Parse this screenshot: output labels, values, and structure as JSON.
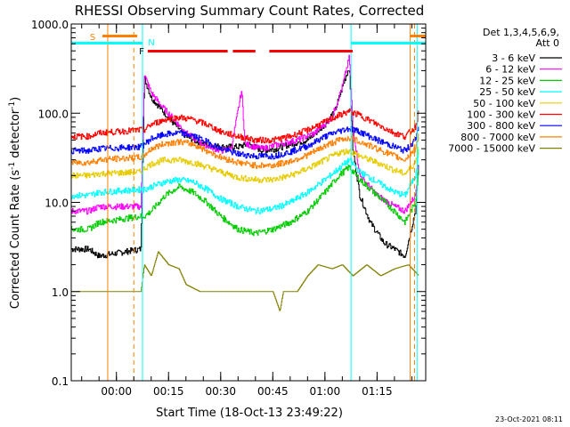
{
  "chart_data": {
    "type": "line",
    "title": "RHESSI Observing Summary Count Rates, Corrected",
    "xlabel": "Start Time (18-Oct-13 23:49:22)",
    "ylabel": "Corrected Count Rate (s",
    "ylabel_sup": "-1",
    "ylabel_tail": " detector",
    "ylabel_tail_sup": "-1",
    "ylabel_close": ")",
    "yscale": "log",
    "ylim": [
      0.1,
      1000
    ],
    "xlim_min": [
      -13,
      89
    ],
    "y_ticks": [
      {
        "v": 0.1,
        "label": "0.1"
      },
      {
        "v": 1,
        "label": "1.0"
      },
      {
        "v": 10,
        "label": "10.0"
      },
      {
        "v": 100,
        "label": "100.0"
      },
      {
        "v": 1000,
        "label": "1000.0"
      }
    ],
    "x_ticks": [
      {
        "v": 0,
        "label": "00:00"
      },
      {
        "v": 15,
        "label": "00:15"
      },
      {
        "v": 30,
        "label": "00:30"
      },
      {
        "v": 45,
        "label": "00:45"
      },
      {
        "v": 60,
        "label": "01:00"
      },
      {
        "v": 75,
        "label": "01:15"
      }
    ],
    "legend": {
      "header": [
        "Det 1,3,4,5,6,9,",
        "Att 0"
      ],
      "placement": "right"
    },
    "series": [
      {
        "name": "3 - 6 keV",
        "color": "#000000",
        "points": [
          [
            -13,
            3
          ],
          [
            -8,
            3
          ],
          [
            -5,
            2.5
          ],
          [
            7,
            3
          ],
          [
            8,
            250
          ],
          [
            10,
            150
          ],
          [
            13,
            110
          ],
          [
            16,
            80
          ],
          [
            20,
            55
          ],
          [
            25,
            45
          ],
          [
            30,
            42
          ],
          [
            35,
            42
          ],
          [
            38,
            45
          ],
          [
            42,
            38
          ],
          [
            46,
            40
          ],
          [
            50,
            45
          ],
          [
            55,
            50
          ],
          [
            60,
            75
          ],
          [
            63,
            110
          ],
          [
            66,
            260
          ],
          [
            67,
            330
          ],
          [
            68,
            40
          ],
          [
            70,
            12
          ],
          [
            73,
            6
          ],
          [
            77,
            3.5
          ],
          [
            80,
            3
          ],
          [
            83,
            2.5
          ],
          [
            86,
            8
          ],
          [
            87,
            30
          ]
        ]
      },
      {
        "name": "6 - 12 keV",
        "color": "#ff00ff",
        "points": [
          [
            -13,
            8
          ],
          [
            -8,
            8
          ],
          [
            -5,
            9
          ],
          [
            7,
            9
          ],
          [
            8,
            270
          ],
          [
            10,
            170
          ],
          [
            13,
            120
          ],
          [
            16,
            90
          ],
          [
            20,
            60
          ],
          [
            25,
            45
          ],
          [
            30,
            38
          ],
          [
            33,
            40
          ],
          [
            36,
            180
          ],
          [
            37,
            45
          ],
          [
            42,
            40
          ],
          [
            47,
            45
          ],
          [
            52,
            50
          ],
          [
            57,
            60
          ],
          [
            62,
            90
          ],
          [
            65,
            200
          ],
          [
            67,
            430
          ],
          [
            68,
            70
          ],
          [
            70,
            20
          ],
          [
            75,
            12
          ],
          [
            80,
            9
          ],
          [
            83,
            8
          ],
          [
            86,
            12
          ],
          [
            87,
            30
          ]
        ]
      },
      {
        "name": "12 - 25 keV",
        "color": "#00cc00",
        "points": [
          [
            -13,
            5
          ],
          [
            -8,
            5
          ],
          [
            -5,
            6
          ],
          [
            7,
            7
          ],
          [
            8,
            7
          ],
          [
            10,
            8
          ],
          [
            14,
            12
          ],
          [
            18,
            15
          ],
          [
            22,
            13
          ],
          [
            26,
            10
          ],
          [
            30,
            7
          ],
          [
            35,
            5
          ],
          [
            40,
            4.5
          ],
          [
            45,
            5
          ],
          [
            50,
            6
          ],
          [
            55,
            8
          ],
          [
            60,
            13
          ],
          [
            64,
            20
          ],
          [
            67,
            25
          ],
          [
            70,
            18
          ],
          [
            75,
            12
          ],
          [
            80,
            8
          ],
          [
            83,
            6
          ],
          [
            86,
            10
          ],
          [
            87,
            25
          ]
        ]
      },
      {
        "name": "25 - 50 keV",
        "color": "#00ffff",
        "points": [
          [
            -13,
            12
          ],
          [
            -8,
            12
          ],
          [
            -5,
            13
          ],
          [
            7,
            14
          ],
          [
            8,
            14
          ],
          [
            10,
            15
          ],
          [
            14,
            17
          ],
          [
            18,
            18
          ],
          [
            22,
            17
          ],
          [
            26,
            14
          ],
          [
            30,
            11
          ],
          [
            35,
            9
          ],
          [
            40,
            8
          ],
          [
            45,
            8.5
          ],
          [
            50,
            10
          ],
          [
            55,
            13
          ],
          [
            60,
            18
          ],
          [
            64,
            24
          ],
          [
            67,
            30
          ],
          [
            70,
            22
          ],
          [
            75,
            17
          ],
          [
            80,
            13
          ],
          [
            83,
            12
          ],
          [
            86,
            20
          ],
          [
            87,
            40
          ]
        ]
      },
      {
        "name": "50 - 100 keV",
        "color": "#e6cc00",
        "points": [
          [
            -13,
            20
          ],
          [
            -8,
            20
          ],
          [
            -5,
            21
          ],
          [
            7,
            22
          ],
          [
            8,
            24
          ],
          [
            10,
            27
          ],
          [
            14,
            30
          ],
          [
            18,
            30
          ],
          [
            22,
            28
          ],
          [
            26,
            25
          ],
          [
            30,
            22
          ],
          [
            35,
            19
          ],
          [
            40,
            18
          ],
          [
            45,
            18
          ],
          [
            50,
            20
          ],
          [
            55,
            24
          ],
          [
            60,
            30
          ],
          [
            64,
            36
          ],
          [
            67,
            38
          ],
          [
            70,
            33
          ],
          [
            75,
            28
          ],
          [
            80,
            23
          ],
          [
            83,
            21
          ],
          [
            86,
            28
          ],
          [
            87,
            45
          ]
        ]
      },
      {
        "name": "100 - 300 keV",
        "color": "#ff0000",
        "points": [
          [
            -13,
            55
          ],
          [
            -8,
            55
          ],
          [
            -5,
            60
          ],
          [
            7,
            65
          ],
          [
            8,
            65
          ],
          [
            10,
            75
          ],
          [
            14,
            85
          ],
          [
            18,
            90
          ],
          [
            22,
            85
          ],
          [
            26,
            75
          ],
          [
            30,
            62
          ],
          [
            35,
            55
          ],
          [
            40,
            50
          ],
          [
            45,
            50
          ],
          [
            50,
            55
          ],
          [
            55,
            65
          ],
          [
            60,
            80
          ],
          [
            64,
            95
          ],
          [
            67,
            105
          ],
          [
            70,
            95
          ],
          [
            75,
            75
          ],
          [
            80,
            60
          ],
          [
            83,
            55
          ],
          [
            86,
            70
          ],
          [
            87,
            105
          ]
        ]
      },
      {
        "name": "300 - 800 keV",
        "color": "#0000ff",
        "points": [
          [
            -13,
            38
          ],
          [
            -8,
            38
          ],
          [
            -5,
            40
          ],
          [
            7,
            42
          ],
          [
            8,
            45
          ],
          [
            10,
            52
          ],
          [
            14,
            58
          ],
          [
            18,
            60
          ],
          [
            22,
            56
          ],
          [
            26,
            48
          ],
          [
            30,
            40
          ],
          [
            35,
            35
          ],
          [
            40,
            33
          ],
          [
            45,
            33
          ],
          [
            50,
            37
          ],
          [
            55,
            43
          ],
          [
            60,
            55
          ],
          [
            64,
            63
          ],
          [
            67,
            68
          ],
          [
            70,
            62
          ],
          [
            75,
            50
          ],
          [
            80,
            42
          ],
          [
            83,
            38
          ],
          [
            86,
            50
          ],
          [
            87,
            75
          ]
        ]
      },
      {
        "name": "800 - 7000 keV",
        "color": "#ff8000",
        "points": [
          [
            -13,
            28
          ],
          [
            -8,
            28
          ],
          [
            -5,
            30
          ],
          [
            7,
            32
          ],
          [
            8,
            34
          ],
          [
            10,
            40
          ],
          [
            14,
            46
          ],
          [
            18,
            48
          ],
          [
            22,
            45
          ],
          [
            26,
            38
          ],
          [
            30,
            32
          ],
          [
            35,
            28
          ],
          [
            40,
            26
          ],
          [
            45,
            26
          ],
          [
            50,
            29
          ],
          [
            55,
            34
          ],
          [
            60,
            43
          ],
          [
            64,
            50
          ],
          [
            67,
            53
          ],
          [
            70,
            48
          ],
          [
            75,
            40
          ],
          [
            80,
            33
          ],
          [
            83,
            30
          ],
          [
            86,
            40
          ],
          [
            87,
            60
          ]
        ]
      },
      {
        "name": "7000 - 15000 keV",
        "color": "#808000",
        "points": [
          [
            -13,
            1
          ],
          [
            -10,
            1
          ],
          [
            7,
            1
          ],
          [
            8,
            2
          ],
          [
            10,
            1.5
          ],
          [
            12,
            2.8
          ],
          [
            15,
            2
          ],
          [
            18,
            1.8
          ],
          [
            20,
            1.2
          ],
          [
            24,
            1
          ],
          [
            30,
            1
          ],
          [
            35,
            1
          ],
          [
            40,
            1
          ],
          [
            45,
            1
          ],
          [
            47,
            0.6
          ],
          [
            48,
            1
          ],
          [
            52,
            1
          ],
          [
            55,
            1.5
          ],
          [
            58,
            2
          ],
          [
            62,
            1.8
          ],
          [
            65,
            2
          ],
          [
            68,
            1.5
          ],
          [
            72,
            2
          ],
          [
            76,
            1.5
          ],
          [
            80,
            1.8
          ],
          [
            84,
            2
          ],
          [
            87,
            1.5
          ]
        ]
      }
    ],
    "annotations": {
      "saa": {
        "label": "S",
        "color": "#ff8000",
        "range": [
          -13,
          6
        ]
      },
      "night": {
        "label": "N",
        "color": "#00ffff",
        "range": [
          -13,
          7.5
        ]
      },
      "night2": {
        "color": "#00ffff",
        "range": [
          67.5,
          89
        ]
      },
      "saa2": {
        "color": "#ff8000",
        "range": [
          84.5,
          89
        ]
      },
      "flare": {
        "label": "F",
        "color": "#ff0000",
        "segments": [
          [
            9,
            32
          ],
          [
            33.5,
            40
          ],
          [
            44,
            68
          ]
        ]
      },
      "cyan_lines": [
        -13,
        7.5,
        67.5,
        86.5
      ],
      "orange_solid": [
        -2.5,
        84.5
      ],
      "orange_dashed": [
        5,
        85.8
      ]
    },
    "footer_date": "23-Oct-2021 08:11"
  }
}
